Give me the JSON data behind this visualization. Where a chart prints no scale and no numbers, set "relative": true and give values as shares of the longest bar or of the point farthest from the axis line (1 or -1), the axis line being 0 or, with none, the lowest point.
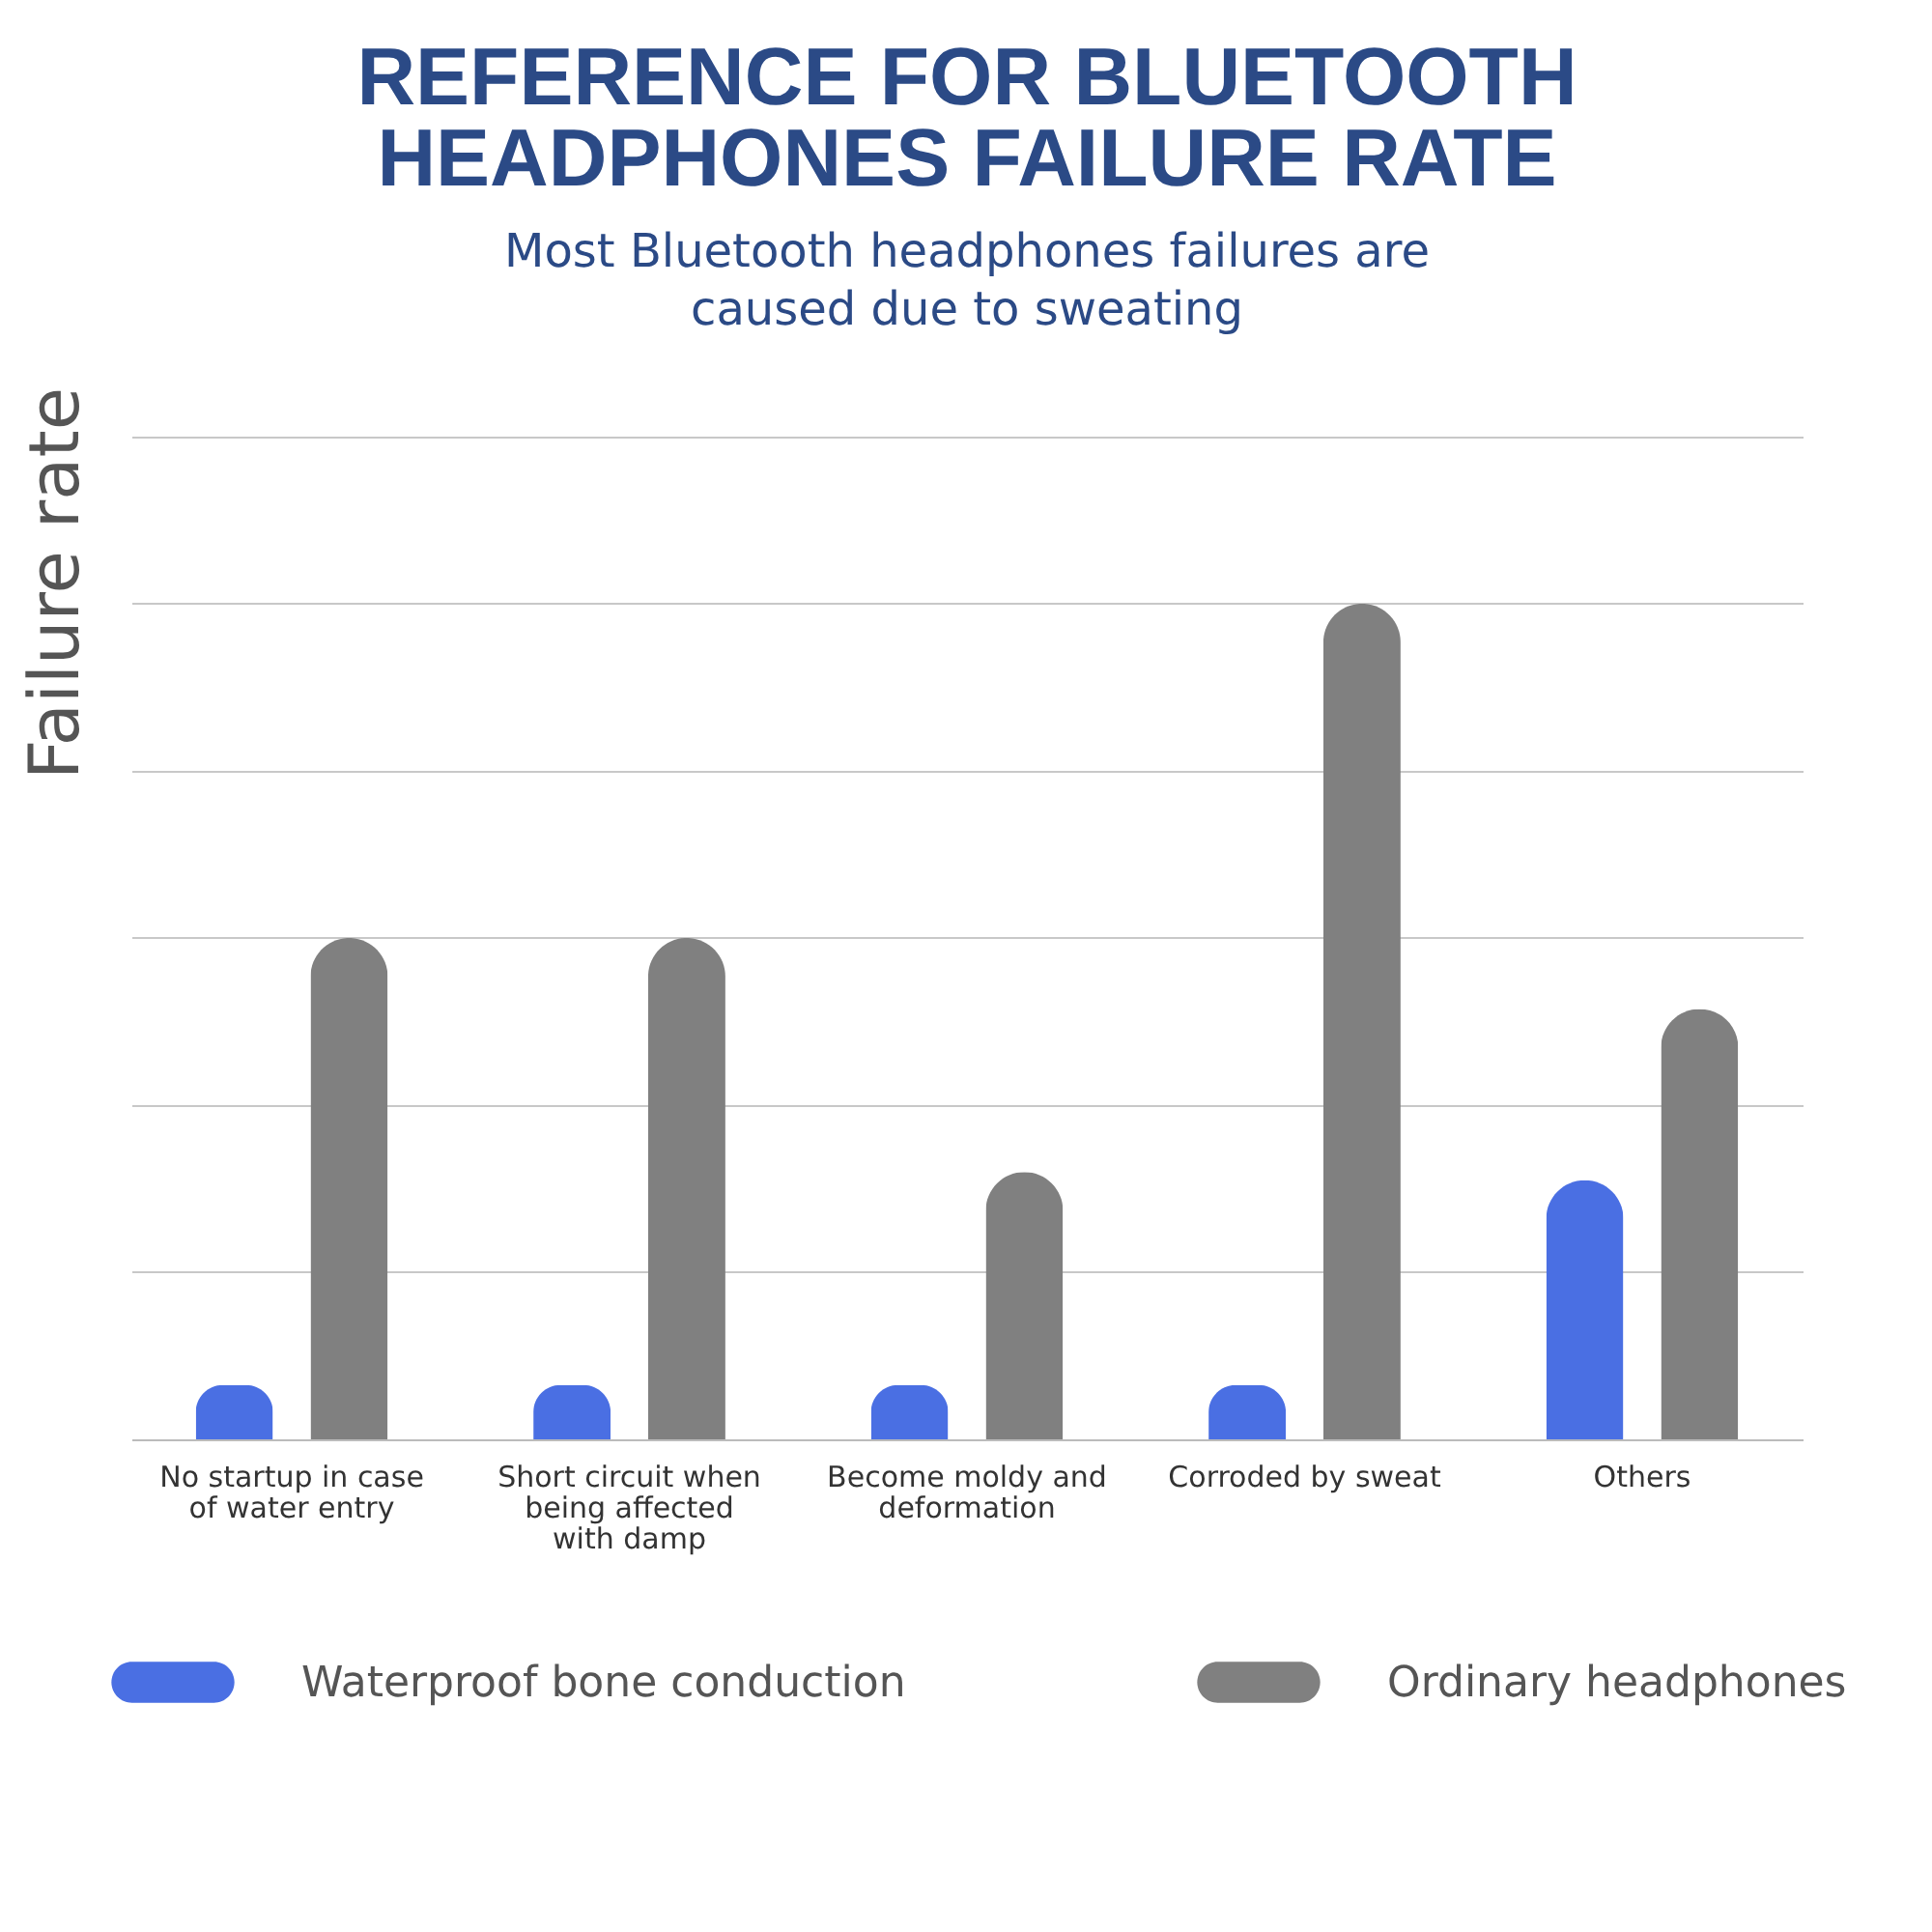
{
  "chart_data": {
    "type": "bar",
    "title": "REFERENCE FOR BLUETOOTH HEADPHONES FAILURE RATE",
    "subtitle": "Most Bluetooth headphones failures are caused due to sweating",
    "ylabel": "Failure rate",
    "relative": true,
    "grid": "y",
    "legend": "bottom",
    "categories": [
      "No startup in case of water entry",
      "Short circuit when being affected with damp",
      "Become moldy and deformation",
      "Corroded by sweat",
      "Others"
    ],
    "series": [
      {
        "name": "Waterproof bone conduction",
        "color": "#4a6fe3",
        "values": [
          0.065,
          0.065,
          0.065,
          0.065,
          0.31
        ]
      },
      {
        "name": "Ordinary headphones",
        "color": "#808080",
        "values": [
          0.6,
          0.6,
          0.32,
          1,
          0.515
        ]
      }
    ]
  }
}
